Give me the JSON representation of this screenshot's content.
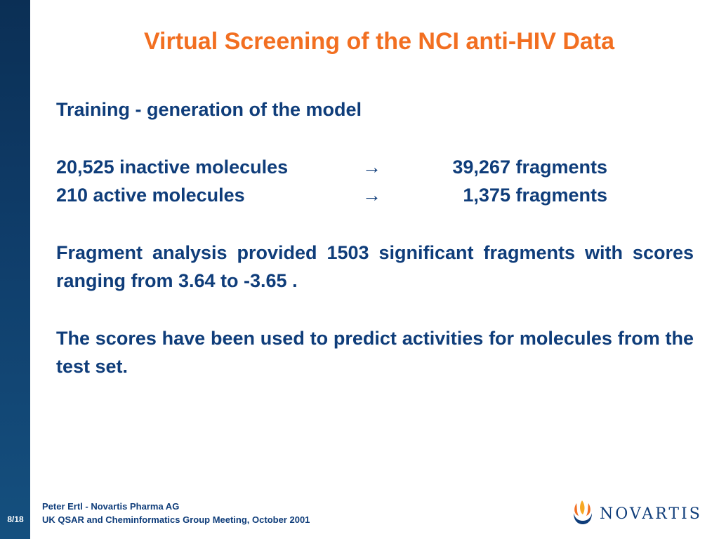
{
  "slide": {
    "title": "Virtual Screening of the NCI anti-HIV Data",
    "subtitle": "Training - generation of the model",
    "rows": [
      {
        "label": "20,525 inactive molecules",
        "arrow": "→",
        "value": "39,267 fragments"
      },
      {
        "label": "210 active molecules",
        "arrow": "→",
        "value": "1,375 fragments"
      }
    ],
    "paragraph1": "Fragment analysis provided 1503 significant fragments with scores ranging from 3.64 to -3.65 .",
    "paragraph2": "The scores have been used to predict activities for molecules from the test set."
  },
  "footer": {
    "author": "Peter Ertl - Novartis Pharma AG",
    "event": "UK QSAR and Cheminformatics Group Meeting, October 2001",
    "page": "8/18"
  },
  "logo": {
    "text": "NOVARTIS",
    "icon": "novartis-flame-icon"
  },
  "colors": {
    "title": "#f26f21",
    "body": "#0f3d7a",
    "sidebar": "#0f3d6a",
    "logo_flame_orange": "#f26f21",
    "logo_flame_yellow": "#f7a823"
  }
}
